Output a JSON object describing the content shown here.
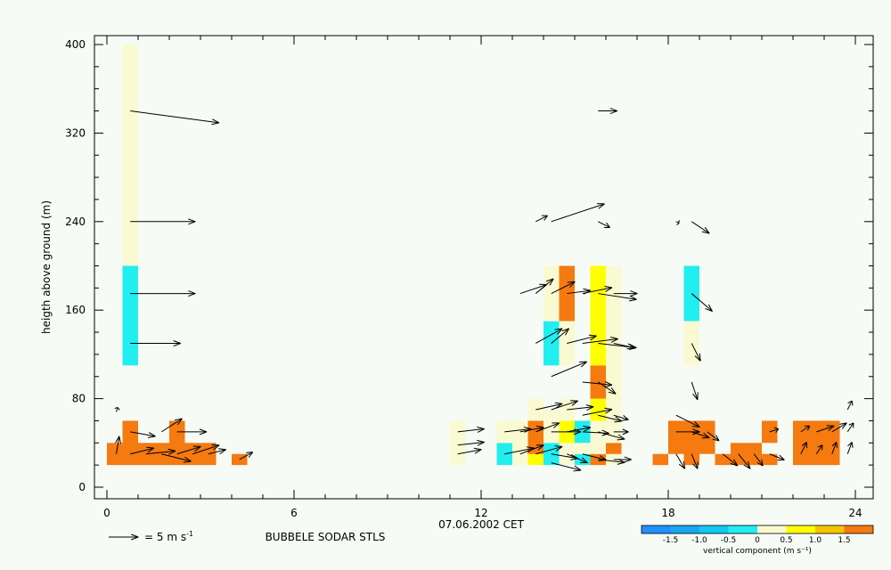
{
  "chart_data": {
    "type": "heatmap",
    "xlabel": "07.06.2002 CET",
    "ylabel": "heigth above ground (m)",
    "subtitle": "BUBBELE SODAR STLS",
    "xlim": [
      0,
      24
    ],
    "ylim": [
      0,
      400
    ],
    "x_ticks": [
      0,
      6,
      12,
      18,
      24
    ],
    "y_ticks": [
      0,
      80,
      160,
      240,
      320,
      400
    ],
    "vector_scale": {
      "magnitude": 5,
      "label": "= 5 m s",
      "unit_exp": "-1"
    },
    "colorbar": {
      "label": "vertical component (m s⁻¹)",
      "ticks": [
        "-1.5",
        "-1.0",
        "-0.5",
        "0",
        "0.5",
        "1.0",
        "1.5"
      ],
      "bins": [
        {
          "range": [
            -2.0,
            -1.5
          ],
          "color": "#1e90ff"
        },
        {
          "range": [
            -1.5,
            -1.0
          ],
          "color": "#18a8f0"
        },
        {
          "range": [
            -1.0,
            -0.5
          ],
          "color": "#10c8f0"
        },
        {
          "range": [
            -0.5,
            0.0
          ],
          "color": "#22eef0"
        },
        {
          "range": [
            0.0,
            0.5
          ],
          "color": "#fafad2"
        },
        {
          "range": [
            0.5,
            1.0
          ],
          "color": "#ffff00"
        },
        {
          "range": [
            1.0,
            1.5
          ],
          "color": "#f7c400"
        },
        {
          "range": [
            1.5,
            2.0
          ],
          "color": "#f57a10"
        }
      ]
    },
    "cells": [
      {
        "x0": 0.5,
        "x1": 1.0,
        "y0": 200,
        "y1": 400,
        "w": 0.2
      },
      {
        "x0": 0.5,
        "x1": 1.0,
        "y0": 110,
        "y1": 200,
        "w": -0.3
      },
      {
        "x0": 0.0,
        "x1": 0.5,
        "y0": 20,
        "y1": 40,
        "w": 1.8
      },
      {
        "x0": 0.5,
        "x1": 1.0,
        "y0": 20,
        "y1": 60,
        "w": 1.8
      },
      {
        "x0": 1.0,
        "x1": 1.5,
        "y0": 20,
        "y1": 40,
        "w": 1.8
      },
      {
        "x0": 1.5,
        "x1": 2.0,
        "y0": 20,
        "y1": 40,
        "w": 1.8
      },
      {
        "x0": 2.0,
        "x1": 2.5,
        "y0": 20,
        "y1": 60,
        "w": 1.8
      },
      {
        "x0": 2.5,
        "x1": 3.0,
        "y0": 20,
        "y1": 40,
        "w": 1.8
      },
      {
        "x0": 3.0,
        "x1": 3.5,
        "y0": 20,
        "y1": 40,
        "w": 1.8
      },
      {
        "x0": 4.0,
        "x1": 4.5,
        "y0": 20,
        "y1": 30,
        "w": 1.8
      },
      {
        "x0": 11.0,
        "x1": 11.5,
        "y0": 20,
        "y1": 60,
        "w": 0.2
      },
      {
        "x0": 12.5,
        "x1": 13.0,
        "y0": 20,
        "y1": 40,
        "w": -0.3
      },
      {
        "x0": 12.5,
        "x1": 13.0,
        "y0": 40,
        "y1": 60,
        "w": 0.2
      },
      {
        "x0": 13.0,
        "x1": 13.5,
        "y0": 20,
        "y1": 60,
        "w": 0.2
      },
      {
        "x0": 13.5,
        "x1": 14.0,
        "y0": 20,
        "y1": 30,
        "w": 0.7
      },
      {
        "x0": 13.5,
        "x1": 14.0,
        "y0": 30,
        "y1": 60,
        "w": 1.8
      },
      {
        "x0": 13.5,
        "x1": 14.0,
        "y0": 60,
        "y1": 80,
        "w": 0.2
      },
      {
        "x0": 14.0,
        "x1": 14.5,
        "y0": 20,
        "y1": 40,
        "w": -0.3
      },
      {
        "x0": 14.0,
        "x1": 14.5,
        "y0": 40,
        "y1": 70,
        "w": 0.2
      },
      {
        "x0": 14.5,
        "x1": 15.0,
        "y0": 20,
        "y1": 40,
        "w": 0.2
      },
      {
        "x0": 14.5,
        "x1": 15.0,
        "y0": 40,
        "y1": 60,
        "w": 0.7
      },
      {
        "x0": 14.5,
        "x1": 15.0,
        "y0": 60,
        "y1": 80,
        "w": 0.2
      },
      {
        "x0": 15.0,
        "x1": 15.5,
        "y0": 20,
        "y1": 30,
        "w": -0.3
      },
      {
        "x0": 15.0,
        "x1": 15.5,
        "y0": 30,
        "y1": 40,
        "w": 0.2
      },
      {
        "x0": 15.0,
        "x1": 15.5,
        "y0": 40,
        "y1": 60,
        "w": -0.3
      },
      {
        "x0": 15.5,
        "x1": 16.0,
        "y0": 20,
        "y1": 30,
        "w": 1.8
      },
      {
        "x0": 15.5,
        "x1": 16.0,
        "y0": 30,
        "y1": 60,
        "w": 0.2
      },
      {
        "x0": 15.5,
        "x1": 16.0,
        "y0": 60,
        "y1": 80,
        "w": 0.7
      },
      {
        "x0": 15.5,
        "x1": 16.0,
        "y0": 80,
        "y1": 110,
        "w": 1.8
      },
      {
        "x0": 15.5,
        "x1": 16.0,
        "y0": 110,
        "y1": 200,
        "w": 0.7
      },
      {
        "x0": 16.0,
        "x1": 16.5,
        "y0": 20,
        "y1": 30,
        "w": 0.2
      },
      {
        "x0": 16.0,
        "x1": 16.5,
        "y0": 30,
        "y1": 40,
        "w": 1.8
      },
      {
        "x0": 16.0,
        "x1": 16.5,
        "y0": 40,
        "y1": 200,
        "w": 0.2
      },
      {
        "x0": 14.0,
        "x1": 14.5,
        "y0": 110,
        "y1": 150,
        "w": -0.3
      },
      {
        "x0": 14.0,
        "x1": 14.5,
        "y0": 150,
        "y1": 200,
        "w": 0.2
      },
      {
        "x0": 14.5,
        "x1": 15.0,
        "y0": 150,
        "y1": 200,
        "w": 1.8
      },
      {
        "x0": 14.5,
        "x1": 15.0,
        "y0": 110,
        "y1": 150,
        "w": 0.2
      },
      {
        "x0": 18.5,
        "x1": 19.0,
        "y0": 150,
        "y1": 200,
        "w": -0.3
      },
      {
        "x0": 18.5,
        "x1": 19.0,
        "y0": 110,
        "y1": 150,
        "w": 0.2
      },
      {
        "x0": 17.5,
        "x1": 18.0,
        "y0": 20,
        "y1": 30,
        "w": 1.8
      },
      {
        "x0": 18.0,
        "x1": 18.5,
        "y0": 30,
        "y1": 60,
        "w": 1.8
      },
      {
        "x0": 18.5,
        "x1": 19.0,
        "y0": 20,
        "y1": 60,
        "w": 1.8
      },
      {
        "x0": 19.0,
        "x1": 19.5,
        "y0": 30,
        "y1": 60,
        "w": 1.8
      },
      {
        "x0": 19.5,
        "x1": 20.0,
        "y0": 20,
        "y1": 30,
        "w": 1.8
      },
      {
        "x0": 20.0,
        "x1": 20.5,
        "y0": 20,
        "y1": 40,
        "w": 1.8
      },
      {
        "x0": 20.5,
        "x1": 21.0,
        "y0": 20,
        "y1": 40,
        "w": 1.8
      },
      {
        "x0": 21.0,
        "x1": 21.5,
        "y0": 20,
        "y1": 30,
        "w": 1.8
      },
      {
        "x0": 21.0,
        "x1": 21.5,
        "y0": 40,
        "y1": 60,
        "w": 1.8
      },
      {
        "x0": 22.0,
        "x1": 22.5,
        "y0": 20,
        "y1": 60,
        "w": 1.8
      },
      {
        "x0": 22.5,
        "x1": 23.0,
        "y0": 20,
        "y1": 60,
        "w": 1.8
      },
      {
        "x0": 23.0,
        "x1": 23.5,
        "y0": 20,
        "y1": 60,
        "w": 1.8
      }
    ],
    "vectors": [
      {
        "x": 0.75,
        "y": 340,
        "u": 6.0,
        "v": -0.8
      },
      {
        "x": 0.75,
        "y": 240,
        "u": 4.4,
        "v": 0.0
      },
      {
        "x": 0.75,
        "y": 175,
        "u": 4.4,
        "v": 0.0
      },
      {
        "x": 0.75,
        "y": 130,
        "u": 3.4,
        "v": 0.0
      },
      {
        "x": 0.3,
        "y": 68,
        "u": 0.1,
        "v": 0.3
      },
      {
        "x": 0.3,
        "y": 30,
        "u": 0.2,
        "v": 1.2
      },
      {
        "x": 0.75,
        "y": 50,
        "u": 1.7,
        "v": -0.3
      },
      {
        "x": 0.75,
        "y": 30,
        "u": 1.6,
        "v": 0.4
      },
      {
        "x": 1.25,
        "y": 30,
        "u": 2.0,
        "v": 0.2
      },
      {
        "x": 1.75,
        "y": 50,
        "u": 1.4,
        "v": 0.9
      },
      {
        "x": 1.75,
        "y": 30,
        "u": 2.0,
        "v": -0.5
      },
      {
        "x": 2.25,
        "y": 50,
        "u": 2.0,
        "v": 0.0
      },
      {
        "x": 2.25,
        "y": 30,
        "u": 1.6,
        "v": 0.5
      },
      {
        "x": 2.75,
        "y": 30,
        "u": 1.8,
        "v": 0.6
      },
      {
        "x": 3.25,
        "y": 30,
        "u": 1.2,
        "v": 0.3
      },
      {
        "x": 4.25,
        "y": 25,
        "u": 0.9,
        "v": 0.5
      },
      {
        "x": 13.75,
        "y": 240,
        "u": 0.8,
        "v": 0.4
      },
      {
        "x": 14.25,
        "y": 240,
        "u": 3.6,
        "v": 1.2
      },
      {
        "x": 15.75,
        "y": 240,
        "u": 0.8,
        "v": -0.4
      },
      {
        "x": 15.75,
        "y": 340,
        "u": 1.3,
        "v": 0.0
      },
      {
        "x": 18.25,
        "y": 240,
        "u": 0.2,
        "v": -0.1
      },
      {
        "x": 18.75,
        "y": 240,
        "u": 1.2,
        "v": -0.8
      },
      {
        "x": 13.25,
        "y": 175,
        "u": 1.8,
        "v": 0.6
      },
      {
        "x": 13.75,
        "y": 175,
        "u": 1.2,
        "v": 1.0
      },
      {
        "x": 14.25,
        "y": 175,
        "u": 1.6,
        "v": 0.8
      },
      {
        "x": 14.75,
        "y": 175,
        "u": 1.6,
        "v": 0.2
      },
      {
        "x": 15.25,
        "y": 175,
        "u": 2.0,
        "v": 0.4
      },
      {
        "x": 15.75,
        "y": 175,
        "u": 2.6,
        "v": -0.4
      },
      {
        "x": 16.25,
        "y": 175,
        "u": 1.6,
        "v": 0.0
      },
      {
        "x": 18.75,
        "y": 175,
        "u": 1.4,
        "v": -1.2
      },
      {
        "x": 13.75,
        "y": 130,
        "u": 1.8,
        "v": 1.0
      },
      {
        "x": 14.25,
        "y": 130,
        "u": 1.2,
        "v": 1.0
      },
      {
        "x": 14.75,
        "y": 130,
        "u": 2.0,
        "v": 0.5
      },
      {
        "x": 15.25,
        "y": 130,
        "u": 2.4,
        "v": 0.3
      },
      {
        "x": 15.75,
        "y": 130,
        "u": 2.6,
        "v": -0.3
      },
      {
        "x": 16.25,
        "y": 130,
        "u": 1.4,
        "v": -0.3
      },
      {
        "x": 18.75,
        "y": 130,
        "u": 0.6,
        "v": -1.2
      },
      {
        "x": 14.25,
        "y": 100,
        "u": 2.4,
        "v": 1.0
      },
      {
        "x": 15.25,
        "y": 95,
        "u": 2.0,
        "v": -0.2
      },
      {
        "x": 15.75,
        "y": 95,
        "u": 1.2,
        "v": -0.8
      },
      {
        "x": 18.75,
        "y": 95,
        "u": 0.4,
        "v": -1.2
      },
      {
        "x": 13.75,
        "y": 70,
        "u": 1.8,
        "v": 0.4
      },
      {
        "x": 14.25,
        "y": 70,
        "u": 1.8,
        "v": 0.6
      },
      {
        "x": 14.75,
        "y": 70,
        "u": 1.8,
        "v": 0.2
      },
      {
        "x": 15.25,
        "y": 65,
        "u": 2.0,
        "v": 0.4
      },
      {
        "x": 15.75,
        "y": 65,
        "u": 1.6,
        "v": -0.4
      },
      {
        "x": 16.25,
        "y": 65,
        "u": 1.0,
        "v": -0.3
      },
      {
        "x": 23.75,
        "y": 70,
        "u": 0.3,
        "v": 0.6
      },
      {
        "x": 11.25,
        "y": 50,
        "u": 1.8,
        "v": 0.2
      },
      {
        "x": 12.75,
        "y": 50,
        "u": 1.8,
        "v": 0.2
      },
      {
        "x": 13.25,
        "y": 50,
        "u": 1.6,
        "v": 0.3
      },
      {
        "x": 13.75,
        "y": 50,
        "u": 1.6,
        "v": 0.6
      },
      {
        "x": 14.25,
        "y": 50,
        "u": 2.0,
        "v": 0.0
      },
      {
        "x": 14.75,
        "y": 50,
        "u": 1.6,
        "v": 0.3
      },
      {
        "x": 15.25,
        "y": 50,
        "u": 1.8,
        "v": -0.1
      },
      {
        "x": 15.75,
        "y": 50,
        "u": 1.8,
        "v": -0.5
      },
      {
        "x": 16.25,
        "y": 50,
        "u": 1.0,
        "v": 0.0
      },
      {
        "x": 18.25,
        "y": 50,
        "u": 1.6,
        "v": 0.0
      },
      {
        "x": 18.75,
        "y": 50,
        "u": 1.2,
        "v": -0.4
      },
      {
        "x": 19.25,
        "y": 50,
        "u": 0.8,
        "v": -0.6
      },
      {
        "x": 18.25,
        "y": 65,
        "u": 1.6,
        "v": -0.8
      },
      {
        "x": 21.25,
        "y": 50,
        "u": 0.6,
        "v": 0.2
      },
      {
        "x": 22.25,
        "y": 50,
        "u": 0.6,
        "v": 0.4
      },
      {
        "x": 22.75,
        "y": 50,
        "u": 1.2,
        "v": 0.4
      },
      {
        "x": 23.25,
        "y": 50,
        "u": 1.0,
        "v": 0.6
      },
      {
        "x": 23.75,
        "y": 50,
        "u": 0.4,
        "v": 0.6
      },
      {
        "x": 11.25,
        "y": 30,
        "u": 1.6,
        "v": 0.3
      },
      {
        "x": 11.25,
        "y": 38,
        "u": 1.8,
        "v": 0.2
      },
      {
        "x": 12.75,
        "y": 30,
        "u": 2.0,
        "v": 0.4
      },
      {
        "x": 13.25,
        "y": 30,
        "u": 1.6,
        "v": 0.6
      },
      {
        "x": 13.75,
        "y": 30,
        "u": 1.8,
        "v": 0.5
      },
      {
        "x": 14.25,
        "y": 30,
        "u": 1.8,
        "v": -0.3
      },
      {
        "x": 14.75,
        "y": 30,
        "u": 1.4,
        "v": -0.6
      },
      {
        "x": 14.25,
        "y": 22,
        "u": 2.0,
        "v": -0.5
      },
      {
        "x": 15.25,
        "y": 30,
        "u": 1.6,
        "v": -0.4
      },
      {
        "x": 15.75,
        "y": 25,
        "u": 1.8,
        "v": -0.2
      },
      {
        "x": 16.25,
        "y": 25,
        "u": 1.2,
        "v": 0.0
      },
      {
        "x": 18.25,
        "y": 30,
        "u": 0.6,
        "v": -1.0
      },
      {
        "x": 18.75,
        "y": 30,
        "u": 0.4,
        "v": -1.0
      },
      {
        "x": 19.75,
        "y": 30,
        "u": 1.0,
        "v": -0.8
      },
      {
        "x": 20.25,
        "y": 30,
        "u": 0.8,
        "v": -1.0
      },
      {
        "x": 20.75,
        "y": 30,
        "u": 0.6,
        "v": -0.8
      },
      {
        "x": 21.25,
        "y": 30,
        "u": 1.0,
        "v": -0.4
      },
      {
        "x": 22.25,
        "y": 30,
        "u": 0.4,
        "v": 0.8
      },
      {
        "x": 22.75,
        "y": 30,
        "u": 0.4,
        "v": 0.6
      },
      {
        "x": 23.25,
        "y": 30,
        "u": 0.3,
        "v": 0.8
      },
      {
        "x": 23.75,
        "y": 30,
        "u": 0.3,
        "v": 0.8
      }
    ]
  }
}
